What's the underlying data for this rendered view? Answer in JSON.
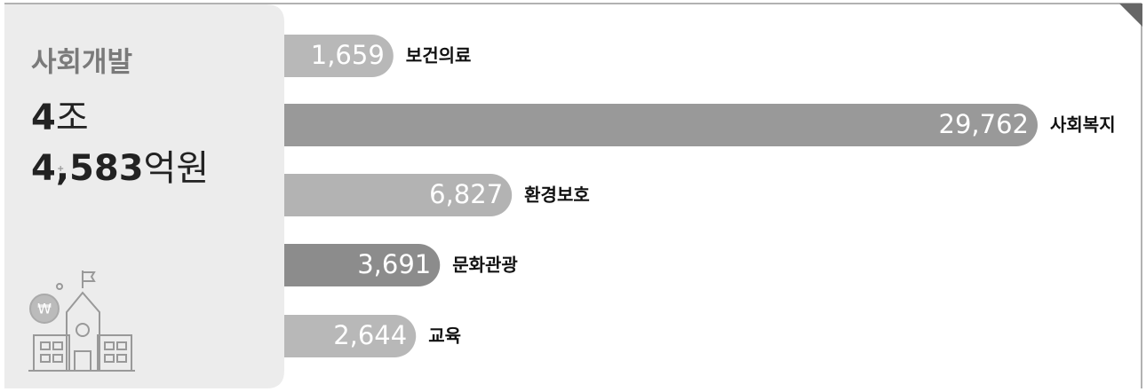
{
  "chart_data": {
    "type": "bar",
    "orientation": "horizontal",
    "title": "사회개발",
    "total": {
      "trillion": "4",
      "trillion_unit": "조",
      "hundred_million": "4,583",
      "hundred_million_unit": "억원"
    },
    "categories": [
      "보건의료",
      "사회복지",
      "환경보호",
      "문화관광",
      "교육"
    ],
    "values": [
      1659,
      29762,
      6827,
      3691,
      2644
    ],
    "value_labels": [
      "1,659",
      "29,762",
      "6,827",
      "3,691",
      "2,644"
    ],
    "colors": [
      "#b8b8b8",
      "#999999",
      "#b3b3b3",
      "#8c8c8c",
      "#b8b8b8"
    ]
  }
}
